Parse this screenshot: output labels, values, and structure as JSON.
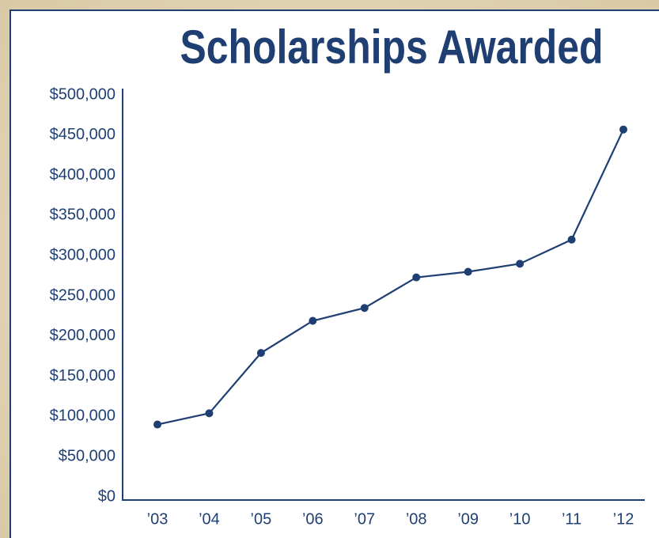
{
  "chart_data": {
    "type": "line",
    "title": "Scholarships Awarded",
    "categories": [
      "’03",
      "’04",
      "’05",
      "’06",
      "’07",
      "’08",
      "’09",
      "’10",
      "’11",
      "’12"
    ],
    "series": [
      {
        "name": "Scholarships Awarded",
        "color": "#1f3f73",
        "values": [
          90000,
          104000,
          179000,
          219000,
          235000,
          273000,
          280000,
          290000,
          320000,
          457000
        ]
      }
    ],
    "ylim": [
      0,
      500000
    ],
    "yticks": [
      {
        "value": 0,
        "label": "$0"
      },
      {
        "value": 50000,
        "label": "$50,000"
      },
      {
        "value": 100000,
        "label": "$100,000"
      },
      {
        "value": 150000,
        "label": "$150,000"
      },
      {
        "value": 200000,
        "label": "$200,000"
      },
      {
        "value": 250000,
        "label": "$250,000"
      },
      {
        "value": 300000,
        "label": "$300,000"
      },
      {
        "value": 350000,
        "label": "$350,000"
      },
      {
        "value": 400000,
        "label": "$400,000"
      },
      {
        "value": 450000,
        "label": "$450,000"
      },
      {
        "value": 500000,
        "label": "$500,000"
      }
    ],
    "grid": false
  }
}
